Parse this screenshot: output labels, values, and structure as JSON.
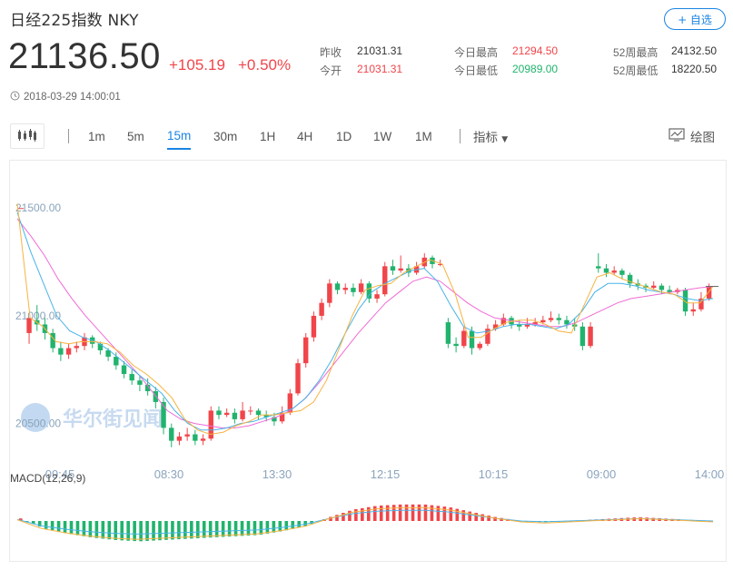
{
  "header": {
    "title": "日经225指数  NKY",
    "fav_label": "+ 自选",
    "price": "21136.50",
    "change": "+105.19",
    "change_pct": "+0.50%",
    "timestamp": "2018-03-29 14:00:01"
  },
  "stats": [
    {
      "label": "昨收",
      "value": "21031.31",
      "color": "dark"
    },
    {
      "label": "今开",
      "value": "21031.31",
      "color": "red"
    },
    {
      "label": "今日最高",
      "value": "21294.50",
      "color": "red"
    },
    {
      "label": "今日最低",
      "value": "20989.00",
      "color": "green"
    },
    {
      "label": "52周最高",
      "value": "24132.50",
      "color": "dark"
    },
    {
      "label": "52周最低",
      "value": "18220.50",
      "color": "dark"
    }
  ],
  "toolbar": {
    "periods": [
      "1m",
      "5m",
      "15m",
      "30m",
      "1H",
      "4H",
      "1D",
      "1W",
      "1M"
    ],
    "active_period": "15m",
    "indicator_label": "指标",
    "draw_label": "绘图"
  },
  "chart": {
    "watermark": "华尔街见闻",
    "macd_label": "MACD(12,26,9)",
    "colors": {
      "up": "#f0454a",
      "down": "#21b36d",
      "ma5": "#f7b340",
      "ma10": "#49b3e8",
      "ma20": "#f06bd6"
    }
  },
  "chart_data": {
    "type": "candlestick",
    "y_ticks": [
      "21500.00",
      "21000.00",
      "20500.00"
    ],
    "x_ticks": [
      "09:45",
      "08:30",
      "13:30",
      "12:15",
      "10:15",
      "09:00",
      "14:00"
    ],
    "ylim": [
      20330,
      21720
    ],
    "candles": [
      [
        21500,
        21500,
        21500,
        21500
      ],
      [
        20920,
        20990,
        20870,
        20980
      ],
      [
        20980,
        20960,
        21050,
        20930
      ],
      [
        20960,
        20920,
        20990,
        20890
      ],
      [
        20920,
        20850,
        20940,
        20830
      ],
      [
        20850,
        20820,
        20880,
        20790
      ],
      [
        20820,
        20850,
        20870,
        20800
      ],
      [
        20850,
        20860,
        20880,
        20830
      ],
      [
        20860,
        20900,
        20920,
        20840
      ],
      [
        20900,
        20870,
        20910,
        20850
      ],
      [
        20870,
        20840,
        20880,
        20820
      ],
      [
        20840,
        20810,
        20850,
        20790
      ],
      [
        20810,
        20770,
        20830,
        20750
      ],
      [
        20770,
        20730,
        20790,
        20710
      ],
      [
        20730,
        20700,
        20750,
        20680
      ],
      [
        20700,
        20680,
        20720,
        20650
      ],
      [
        20680,
        20650,
        20710,
        20630
      ],
      [
        20650,
        20600,
        20670,
        20570
      ],
      [
        20600,
        20480,
        20620,
        20450
      ],
      [
        20480,
        20420,
        20500,
        20390
      ],
      [
        20420,
        20440,
        20460,
        20400
      ],
      [
        20440,
        20450,
        20480,
        20420
      ],
      [
        20450,
        20420,
        20470,
        20400
      ],
      [
        20420,
        20430,
        20450,
        20400
      ],
      [
        20430,
        20560,
        20580,
        20420
      ],
      [
        20560,
        20540,
        20580,
        20520
      ],
      [
        20540,
        20550,
        20570,
        20530
      ],
      [
        20550,
        20520,
        20570,
        20500
      ],
      [
        20520,
        20560,
        20600,
        20510
      ],
      [
        20560,
        20560,
        20580,
        20540
      ],
      [
        20560,
        20540,
        20570,
        20520
      ],
      [
        20540,
        20530,
        20560,
        20510
      ],
      [
        20530,
        20510,
        20550,
        20490
      ],
      [
        20510,
        20550,
        20580,
        20500
      ],
      [
        20550,
        20640,
        20660,
        20540
      ],
      [
        20640,
        20780,
        20800,
        20630
      ],
      [
        20780,
        20900,
        20920,
        20760
      ],
      [
        20900,
        21000,
        21020,
        20880
      ],
      [
        21000,
        21060,
        21080,
        20980
      ],
      [
        21060,
        21150,
        21170,
        21040
      ],
      [
        21150,
        21120,
        21160,
        21100
      ],
      [
        21120,
        21130,
        21150,
        21100
      ],
      [
        21130,
        21110,
        21150,
        21090
      ],
      [
        21110,
        21150,
        21170,
        21100
      ],
      [
        21150,
        21080,
        21160,
        21060
      ],
      [
        21080,
        21100,
        21120,
        21060
      ],
      [
        21100,
        21230,
        21250,
        21090
      ],
      [
        21230,
        21210,
        21260,
        21190
      ],
      [
        21210,
        21220,
        21280,
        21200
      ],
      [
        21220,
        21200,
        21240,
        21180
      ],
      [
        21200,
        21230,
        21250,
        21190
      ],
      [
        21230,
        21270,
        21290,
        21220
      ],
      [
        21270,
        21240,
        21280,
        21220
      ],
      [
        21240,
        21240,
        21260,
        21230
      ],
      [
        20970,
        20870,
        20990,
        20850
      ],
      [
        20870,
        20860,
        20900,
        20830
      ],
      [
        20860,
        20930,
        20950,
        20850
      ],
      [
        20930,
        20850,
        20950,
        20820
      ],
      [
        20850,
        20870,
        20880,
        20840
      ],
      [
        20870,
        20940,
        20960,
        20860
      ],
      [
        20940,
        20960,
        20980,
        20930
      ],
      [
        20960,
        20990,
        21010,
        20950
      ],
      [
        20990,
        20960,
        21000,
        20940
      ],
      [
        20960,
        20950,
        20980,
        20930
      ],
      [
        20950,
        20960,
        20990,
        20940
      ],
      [
        20960,
        20970,
        20990,
        20950
      ],
      [
        20970,
        20980,
        21000,
        20960
      ],
      [
        20980,
        20990,
        21020,
        20970
      ],
      [
        20990,
        20980,
        21010,
        20960
      ],
      [
        20980,
        20960,
        21000,
        20940
      ],
      [
        20960,
        20950,
        20990,
        20930
      ],
      [
        20950,
        20860,
        20970,
        20840
      ],
      [
        20860,
        20950,
        20970,
        20850
      ],
      [
        21230,
        21220,
        21290,
        21200
      ],
      [
        21220,
        21200,
        21240,
        21180
      ],
      [
        21200,
        21210,
        21230,
        21190
      ],
      [
        21210,
        21190,
        21220,
        21170
      ],
      [
        21190,
        21150,
        21200,
        21130
      ],
      [
        21150,
        21140,
        21170,
        21120
      ],
      [
        21140,
        21130,
        21150,
        21110
      ],
      [
        21130,
        21140,
        21160,
        21120
      ],
      [
        21140,
        21120,
        21150,
        21100
      ],
      [
        21120,
        21110,
        21140,
        21100
      ],
      [
        21110,
        21120,
        21130,
        21100
      ],
      [
        21120,
        21020,
        21130,
        21000
      ],
      [
        21020,
        21030,
        21060,
        21000
      ],
      [
        21030,
        21080,
        21110,
        21020
      ],
      [
        21080,
        21136,
        21150,
        21070
      ]
    ],
    "ma5": [
      21520,
      20990,
      20950,
      20880,
      20870,
      20880,
      20880,
      20870,
      20830,
      20770,
      20730,
      20680,
      20620,
      20520,
      20470,
      20450,
      20460,
      20490,
      20510,
      20540,
      20540,
      20550,
      20560,
      20600,
      20700,
      20850,
      21000,
      21120,
      21140,
      21150,
      21200,
      21230,
      21260,
      21240,
      21100,
      20900,
      20900,
      20940,
      20970,
      20980,
      20980,
      20960,
      20930,
      20920,
      21050,
      21180,
      21200,
      21170,
      21150,
      21130,
      21110,
      21100,
      21060,
      21060,
      21136
    ],
    "ma10": [
      21480,
      21300,
      21150,
      21000,
      20930,
      20900,
      20880,
      20840,
      20790,
      20740,
      20690,
      20640,
      20560,
      20500,
      20470,
      20470,
      20480,
      20500,
      20510,
      20530,
      20550,
      20570,
      20620,
      20700,
      20800,
      20920,
      21030,
      21110,
      21150,
      21180,
      21210,
      21220,
      21160,
      21050,
      20950,
      20920,
      20930,
      20950,
      20960,
      20960,
      20950,
      20940,
      20960,
      21020,
      21110,
      21150,
      21150,
      21140,
      21120,
      21110,
      21100,
      21080,
      21070,
      21080
    ],
    "ma20": [
      21450,
      21370,
      21280,
      21170,
      21080,
      21000,
      20930,
      20860,
      20790,
      20720,
      20640,
      20560,
      20520,
      20500,
      20490,
      20480,
      20480,
      20490,
      20510,
      20530,
      20560,
      20610,
      20680,
      20760,
      20840,
      20920,
      20990,
      21060,
      21110,
      21160,
      21180,
      21160,
      21110,
      21060,
      21020,
      20990,
      20980,
      20970,
      20960,
      20950,
      20950,
      20970,
      21000,
      21030,
      21060,
      21080,
      21090,
      21100,
      21110,
      21120,
      21130,
      21136
    ],
    "macd": [
      0.2,
      -0.6,
      -1.0,
      -1.3,
      -1.5,
      -1.6,
      -1.5,
      -1.4,
      -1.3,
      -1.2,
      -1.1,
      -0.8,
      -0.4,
      0.3,
      0.9,
      1.2,
      1.3,
      1.3,
      1.1,
      0.7,
      0.3,
      0.0,
      -0.1,
      0.0,
      0.1,
      0.2,
      0.3,
      0.2,
      0.1,
      0.0
    ]
  }
}
